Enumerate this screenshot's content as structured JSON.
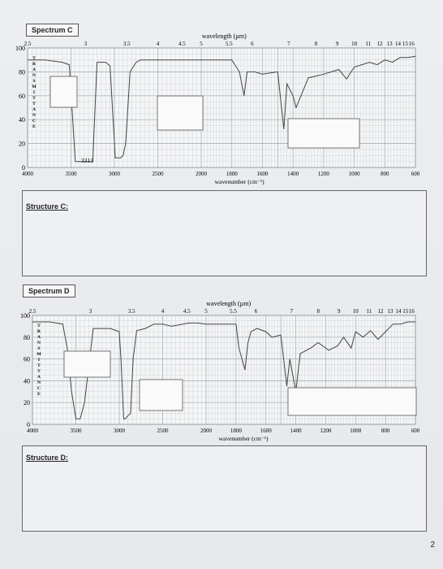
{
  "page": {
    "page_number": "2"
  },
  "spectrumC": {
    "title": "Spectrum C",
    "top_axis_title": "wavelength (µm)",
    "bottom_axis_title": "wavenumber (cm⁻¹)",
    "y_axis_title": "TRANSMITTANCE",
    "peak_annotation": "3313",
    "structure_label": "Structure C:"
  },
  "spectrumD": {
    "title": "Spectrum D",
    "top_axis_title": "wavelength (µm)",
    "bottom_axis_title": "wavenumber (cm⁻¹)",
    "y_axis_title": "TRANSMITTANCE",
    "structure_label": "Structure D:"
  },
  "chart_data": [
    {
      "type": "line",
      "title": "Spectrum C",
      "xlabel": "wavenumber (cm⁻¹)",
      "ylabel": "TRANSMITTANCE",
      "top_label": "wavelength (µm)",
      "x_ticks": [
        4000,
        3500,
        3000,
        2500,
        2000,
        1800,
        1600,
        1400,
        1200,
        1000,
        800,
        600
      ],
      "x_tick_labels": [
        "4000",
        "3500",
        "3000",
        "2500",
        "2000",
        "1800",
        "1600",
        "1400",
        "1200",
        "1000",
        "800",
        "600"
      ],
      "top_ticks": [
        "2.5",
        "3",
        "3.5",
        "4",
        "4.5",
        "5",
        "5.5",
        "6",
        "7",
        "8",
        "9",
        "10",
        "11",
        "12",
        "13",
        "14",
        "15",
        "16"
      ],
      "y_ticks": [
        0,
        20,
        40,
        60,
        80,
        100
      ],
      "ylim": [
        0,
        100
      ],
      "annotations": [
        "3313"
      ],
      "series": [
        {
          "x": [
            4000,
            3800,
            3600,
            3520,
            3450,
            3380,
            3313,
            3250,
            3200,
            3100,
            3050,
            2990,
            2960,
            2930,
            2900,
            2870,
            2820,
            2750,
            2700,
            2600,
            2500,
            2400,
            2300,
            2200,
            2100,
            2000,
            1900,
            1800,
            1750,
            1720,
            1700,
            1650,
            1600,
            1500,
            1460,
            1440,
            1400,
            1380,
            1300,
            1200,
            1100,
            1050,
            1000,
            950,
            900,
            850,
            800,
            750,
            700,
            650,
            600
          ],
          "y": [
            90,
            90,
            88,
            86,
            5,
            5,
            5,
            5,
            88,
            88,
            85,
            8,
            8,
            8,
            10,
            20,
            80,
            88,
            90,
            90,
            90,
            90,
            90,
            90,
            90,
            90,
            90,
            90,
            80,
            60,
            80,
            80,
            78,
            80,
            32,
            70,
            60,
            50,
            75,
            78,
            82,
            74,
            84,
            86,
            88,
            86,
            90,
            88,
            92,
            92,
            93
          ]
        }
      ]
    },
    {
      "type": "line",
      "title": "Spectrum D",
      "xlabel": "wavenumber (cm⁻¹)",
      "ylabel": "TRANSMITTANCE",
      "top_label": "wavelength (µm)",
      "x_ticks": [
        4000,
        3500,
        3000,
        2500,
        2000,
        1800,
        1600,
        1400,
        1200,
        1000,
        800,
        600
      ],
      "x_tick_labels": [
        "4000",
        "3500",
        "3000",
        "2500",
        "2000",
        "1800",
        "1600",
        "1400",
        "1200",
        "1000",
        "800",
        "600"
      ],
      "top_ticks": [
        "2.5",
        "3",
        "3.5",
        "4",
        "4.5",
        "5",
        "5.5",
        "6",
        "7",
        "8",
        "9",
        "10",
        "11",
        "12",
        "13",
        "14",
        "15",
        "16"
      ],
      "y_ticks": [
        0,
        20,
        40,
        60,
        80,
        100
      ],
      "ylim": [
        0,
        100
      ],
      "series": [
        {
          "x": [
            4000,
            3800,
            3650,
            3600,
            3550,
            3500,
            3450,
            3400,
            3300,
            3100,
            3000,
            2980,
            2950,
            2930,
            2900,
            2870,
            2840,
            2800,
            2700,
            2600,
            2500,
            2400,
            2200,
            2100,
            2000,
            1900,
            1800,
            1780,
            1740,
            1720,
            1700,
            1660,
            1600,
            1560,
            1500,
            1460,
            1440,
            1400,
            1370,
            1300,
            1250,
            1180,
            1120,
            1080,
            1030,
            1000,
            950,
            900,
            850,
            800,
            750,
            700,
            650,
            600
          ],
          "y": [
            94,
            94,
            92,
            70,
            30,
            5,
            5,
            20,
            88,
            88,
            85,
            60,
            5,
            5,
            8,
            10,
            60,
            86,
            88,
            92,
            92,
            90,
            93,
            93,
            92,
            92,
            92,
            70,
            50,
            75,
            85,
            88,
            85,
            80,
            82,
            35,
            60,
            30,
            65,
            70,
            75,
            68,
            72,
            80,
            70,
            85,
            80,
            86,
            78,
            85,
            92,
            92,
            94,
            94
          ]
        }
      ]
    }
  ]
}
